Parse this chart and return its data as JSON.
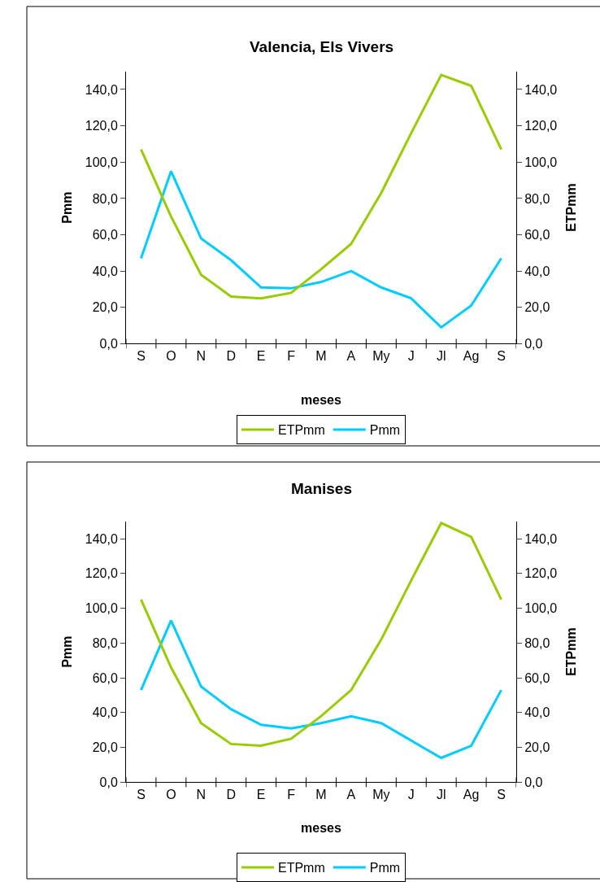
{
  "chart_data": [
    {
      "type": "line",
      "title": "Valencia, Els Vivers",
      "xlabel": "meses",
      "ylabel": "Pmm",
      "y2label": "ETPmm",
      "categories": [
        "S",
        "O",
        "N",
        "D",
        "E",
        "F",
        "M",
        "A",
        "My",
        "J",
        "Jl",
        "Ag",
        "S"
      ],
      "series": [
        {
          "name": "ETPmm",
          "color": "#99cc00",
          "axis": "y2",
          "values": [
            107,
            70,
            38,
            26,
            25,
            28,
            41,
            55,
            83,
            116,
            148,
            142,
            107
          ]
        },
        {
          "name": "Pmm",
          "color": "#00ccff",
          "values": [
            47,
            95,
            58,
            46,
            31,
            30.5,
            34,
            40,
            31,
            25,
            9,
            21,
            47
          ]
        }
      ],
      "ylim": [
        0,
        150
      ],
      "yticks": [
        {
          "value": 0,
          "label": "0,0"
        },
        {
          "value": 20,
          "label": "20,0"
        },
        {
          "value": 40,
          "label": "40,0"
        },
        {
          "value": 60,
          "label": "60,0"
        },
        {
          "value": 80,
          "label": "80,0"
        },
        {
          "value": 100,
          "label": "100,0"
        },
        {
          "value": 120,
          "label": "120,0"
        },
        {
          "value": 140,
          "label": "140,0"
        }
      ],
      "y2lim": [
        0,
        150
      ],
      "y2ticks": [
        {
          "value": 0,
          "label": "0,0"
        },
        {
          "value": 20,
          "label": "20,0"
        },
        {
          "value": 40,
          "label": "40,0"
        },
        {
          "value": 60,
          "label": "60,0"
        },
        {
          "value": 80,
          "label": "80,0"
        },
        {
          "value": 100,
          "label": "100,0"
        },
        {
          "value": 120,
          "label": "120,0"
        },
        {
          "value": 140,
          "label": "140,0"
        }
      ],
      "grid": false,
      "legend": "bottom"
    },
    {
      "type": "line",
      "title": "Manises",
      "xlabel": "meses",
      "ylabel": "Pmm",
      "y2label": "ETPmm",
      "categories": [
        "S",
        "O",
        "N",
        "D",
        "E",
        "F",
        "M",
        "A",
        "My",
        "J",
        "Jl",
        "Ag",
        "S"
      ],
      "series": [
        {
          "name": "ETPmm",
          "color": "#99cc00",
          "axis": "y2",
          "values": [
            105,
            66,
            34,
            22,
            21,
            25,
            38,
            53,
            82,
            116,
            149,
            141,
            105
          ]
        },
        {
          "name": "Pmm",
          "color": "#00ccff",
          "values": [
            53,
            93,
            55,
            42,
            33,
            31,
            34,
            38,
            34,
            24,
            14,
            21,
            53
          ]
        }
      ],
      "ylim": [
        0,
        150
      ],
      "yticks": [
        {
          "value": 0,
          "label": "0,0"
        },
        {
          "value": 20,
          "label": "20,0"
        },
        {
          "value": 40,
          "label": "40,0"
        },
        {
          "value": 60,
          "label": "60,0"
        },
        {
          "value": 80,
          "label": "80,0"
        },
        {
          "value": 100,
          "label": "100,0"
        },
        {
          "value": 120,
          "label": "120,0"
        },
        {
          "value": 140,
          "label": "140,0"
        }
      ],
      "y2lim": [
        0,
        150
      ],
      "y2ticks": [
        {
          "value": 0,
          "label": "0,0"
        },
        {
          "value": 20,
          "label": "20,0"
        },
        {
          "value": 40,
          "label": "40,0"
        },
        {
          "value": 60,
          "label": "60,0"
        },
        {
          "value": 80,
          "label": "80,0"
        },
        {
          "value": 100,
          "label": "100,0"
        },
        {
          "value": 120,
          "label": "120,0"
        },
        {
          "value": 140,
          "label": "140,0"
        }
      ],
      "grid": false,
      "legend": "bottom"
    }
  ]
}
